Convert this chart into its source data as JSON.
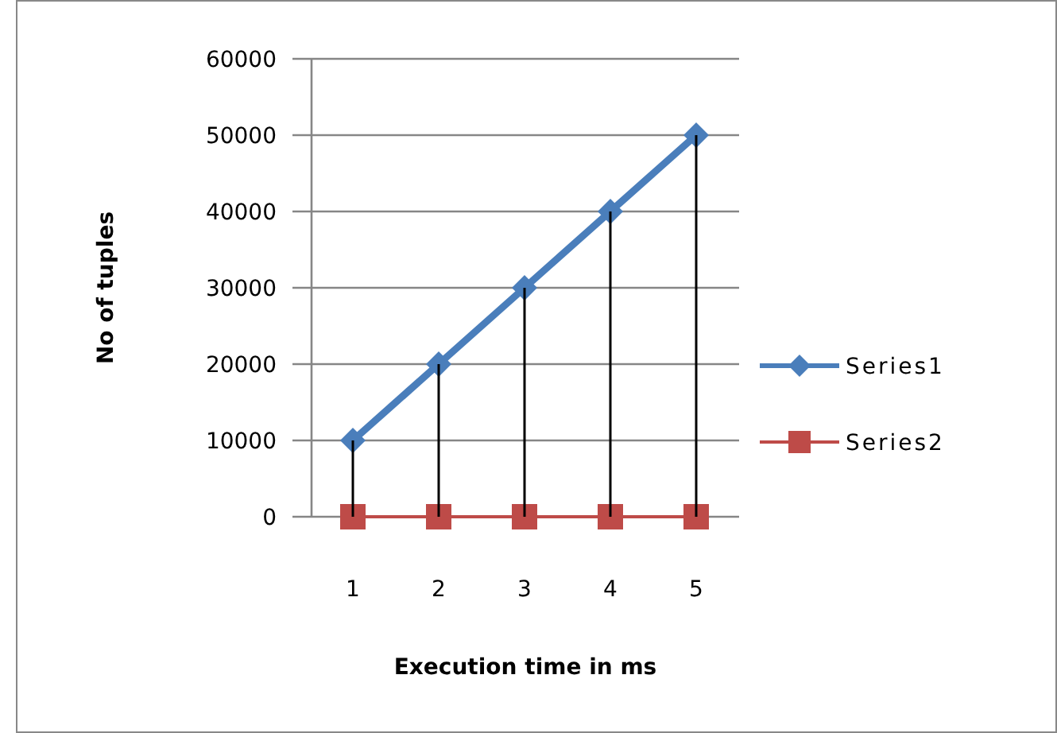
{
  "chart_data": {
    "type": "line",
    "xlabel": "Execution time in ms",
    "ylabel": "No of tuples",
    "categories": [
      "1",
      "2",
      "3",
      "4",
      "5"
    ],
    "series": [
      {
        "name": "Series1",
        "color": "#4a7ebb",
        "values": [
          10000,
          20000,
          30000,
          40000,
          50000
        ],
        "marker": "diamond"
      },
      {
        "name": "Series2",
        "color": "#be4b48",
        "values": [
          0,
          0,
          0,
          0,
          0
        ],
        "marker": "square",
        "errors": [
          [
            0,
            10000
          ],
          [
            0,
            20000
          ],
          [
            0,
            30000
          ],
          [
            0,
            40000
          ],
          [
            0,
            50000
          ]
        ]
      }
    ],
    "ylim": [
      0,
      60000
    ],
    "yticks": [
      0,
      10000,
      20000,
      30000,
      40000,
      50000,
      60000
    ],
    "grid": "y",
    "legend": "right"
  }
}
